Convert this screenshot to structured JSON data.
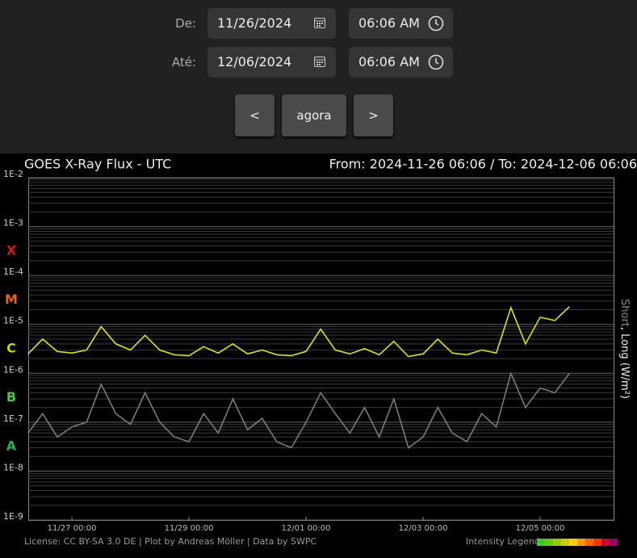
{
  "form": {
    "from_label": "De:",
    "from_date": "11/26/2024",
    "from_time": "06:06 AM",
    "to_label": "Até:",
    "to_date": "12/06/2024",
    "to_time": "06:06 AM",
    "buttons": [
      "<",
      "agora",
      ">"
    ]
  },
  "chart_data": {
    "type": "line",
    "title": "GOES X-Ray Flux - UTC",
    "range_text": "From: 2024-11-26 06:06  /  To: 2024-12-06 06:06",
    "ylabel": [
      "Short",
      ", Long (W/m²)"
    ],
    "log_y": true,
    "grid": true,
    "ylim": [
      1e-09,
      0.01
    ],
    "yticks": [
      {
        "value": 0.01,
        "label": "1E-2"
      },
      {
        "value": 0.001,
        "label": "1E-3"
      },
      {
        "value": 0.0001,
        "label": "1E-4"
      },
      {
        "value": 1e-05,
        "label": "1E-5"
      },
      {
        "value": 1e-06,
        "label": "1E-6"
      },
      {
        "value": 1e-07,
        "label": "1E-7"
      },
      {
        "value": 1e-08,
        "label": "1E-8"
      },
      {
        "value": 1e-09,
        "label": "1E-9"
      }
    ],
    "flare_classes": [
      {
        "label": "X",
        "color": "#d01818"
      },
      {
        "label": "M",
        "color": "#e8641a"
      },
      {
        "label": "C",
        "color": "#c9d400"
      },
      {
        "label": "B",
        "color": "#48c83a"
      },
      {
        "label": "A",
        "color": "#2fb04a"
      }
    ],
    "xlim": [
      "11/26 06:06",
      "12/06 06:06"
    ],
    "xticks": [
      "11/27 00:00",
      "11/29 00:00",
      "12/01 00:00",
      "12/03 00:00",
      "12/05 00:00"
    ],
    "x": [
      "11/26 06:00",
      "11/26 12:00",
      "11/26 18:00",
      "11/27 00:00",
      "11/27 06:00",
      "11/27 12:00",
      "11/27 18:00",
      "11/28 00:00",
      "11/28 06:00",
      "11/28 12:00",
      "11/28 18:00",
      "11/29 00:00",
      "11/29 06:00",
      "11/29 12:00",
      "11/29 18:00",
      "11/30 00:00",
      "11/30 06:00",
      "11/30 12:00",
      "11/30 18:00",
      "12/01 00:00",
      "12/01 06:00",
      "12/01 12:00",
      "12/01 18:00",
      "12/02 00:00",
      "12/02 06:00",
      "12/02 12:00",
      "12/02 18:00",
      "12/03 00:00",
      "12/03 06:00",
      "12/03 12:00",
      "12/03 18:00",
      "12/04 00:00",
      "12/04 06:00",
      "12/04 12:00",
      "12/04 18:00",
      "12/05 00:00",
      "12/05 06:00",
      "12/05 12:00"
    ],
    "series": [
      {
        "color": "#dce600",
        "values": [
          2.5e-06,
          5e-06,
          2.8e-06,
          2.6e-06,
          3e-06,
          9e-06,
          4e-06,
          3e-06,
          6e-06,
          3e-06,
          2.4e-06,
          2.3e-06,
          3.5e-06,
          2.6e-06,
          4e-06,
          2.5e-06,
          3e-06,
          2.4e-06,
          2.3e-06,
          2.8e-06,
          8e-06,
          3e-06,
          2.5e-06,
          3.2e-06,
          2.4e-06,
          4.5e-06,
          2.2e-06,
          2.5e-06,
          5e-06,
          2.6e-06,
          2.4e-06,
          3e-06,
          2.6e-06,
          2.2e-05,
          4e-06,
          1.4e-05,
          1.2e-05,
          2.3e-05
        ]
      },
      {
        "color": "#7a7a7a",
        "values": [
          6e-08,
          1.5e-07,
          5e-08,
          8e-08,
          1e-07,
          6e-07,
          1.5e-07,
          9e-08,
          4e-07,
          1e-07,
          5e-08,
          4e-08,
          1.5e-07,
          6e-08,
          3e-07,
          7e-08,
          1.2e-07,
          4e-08,
          3e-08,
          1e-07,
          4e-07,
          1.5e-07,
          6e-08,
          2e-07,
          5e-08,
          3e-07,
          3e-08,
          5e-08,
          2e-07,
          6e-08,
          4e-08,
          1.5e-07,
          8e-08,
          1e-06,
          2e-07,
          5e-07,
          4e-07,
          1e-06
        ]
      }
    ],
    "footer": "License: CC BY-SA 3.0 DE | Plot by Andreas Möller | Data by SWPC",
    "legend_label": "Intensity Legend"
  }
}
